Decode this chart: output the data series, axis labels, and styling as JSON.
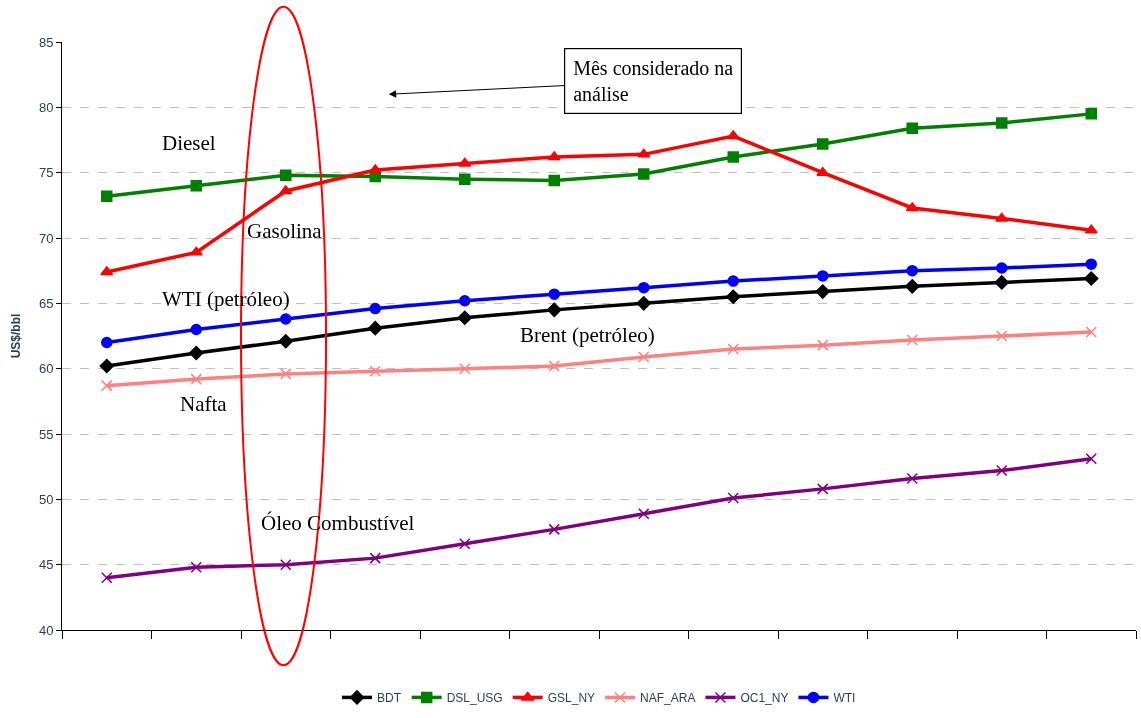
{
  "chart_data": {
    "type": "line",
    "ylabel": "US$/bbl",
    "categories": [
      null,
      null,
      null,
      null,
      null,
      null,
      null,
      null,
      null,
      null,
      null,
      null
    ],
    "series": [
      {
        "name": "BDT",
        "color": "#000000",
        "marker": "diamond",
        "values": [
          60.2,
          61.2,
          62.1,
          63.1,
          63.9,
          64.5,
          65.0,
          65.5,
          65.9,
          66.3,
          66.6,
          66.9
        ]
      },
      {
        "name": "DSL_USG",
        "color": "#008000",
        "marker": "square",
        "values": [
          73.2,
          74.0,
          74.8,
          74.7,
          74.5,
          74.4,
          74.9,
          76.2,
          77.2,
          78.4,
          78.8,
          79.5
        ]
      },
      {
        "name": "GSL_NY",
        "color": "#ff0000",
        "marker": "triangle",
        "values": [
          67.4,
          68.9,
          73.6,
          75.2,
          75.7,
          76.2,
          76.4,
          77.8,
          75.0,
          72.3,
          71.5,
          70.6
        ]
      },
      {
        "name": "NAF_ARA",
        "color": "#ff8080",
        "marker": "cross",
        "values": [
          58.7,
          59.2,
          59.6,
          59.8,
          60.0,
          60.2,
          60.9,
          61.5,
          61.8,
          62.2,
          62.5,
          62.8
        ]
      },
      {
        "name": "OC1_NY",
        "color": "#800080",
        "marker": "cross",
        "values": [
          44.0,
          44.8,
          45.0,
          45.5,
          46.6,
          47.7,
          48.9,
          50.1,
          50.8,
          51.6,
          52.2,
          53.1
        ]
      },
      {
        "name": "WTI",
        "color": "#0000ff",
        "marker": "circle",
        "values": [
          62.0,
          63.0,
          63.8,
          64.6,
          65.2,
          65.7,
          66.2,
          66.7,
          67.1,
          67.5,
          67.7,
          68.0
        ]
      }
    ],
    "ylim": [
      40,
      85
    ],
    "yticks": [
      40,
      45,
      50,
      55,
      60,
      65,
      70,
      75,
      80,
      85
    ],
    "grid": "y",
    "legend": "bottom",
    "tick_labels": "y",
    "line_style": "solid",
    "annotations": [
      "Diesel",
      "Gasolina",
      "WTI (petróleo)",
      "Brent (petróleo)",
      "Nafta",
      "Óleo Combustível",
      "Mês considerado na análise"
    ]
  }
}
